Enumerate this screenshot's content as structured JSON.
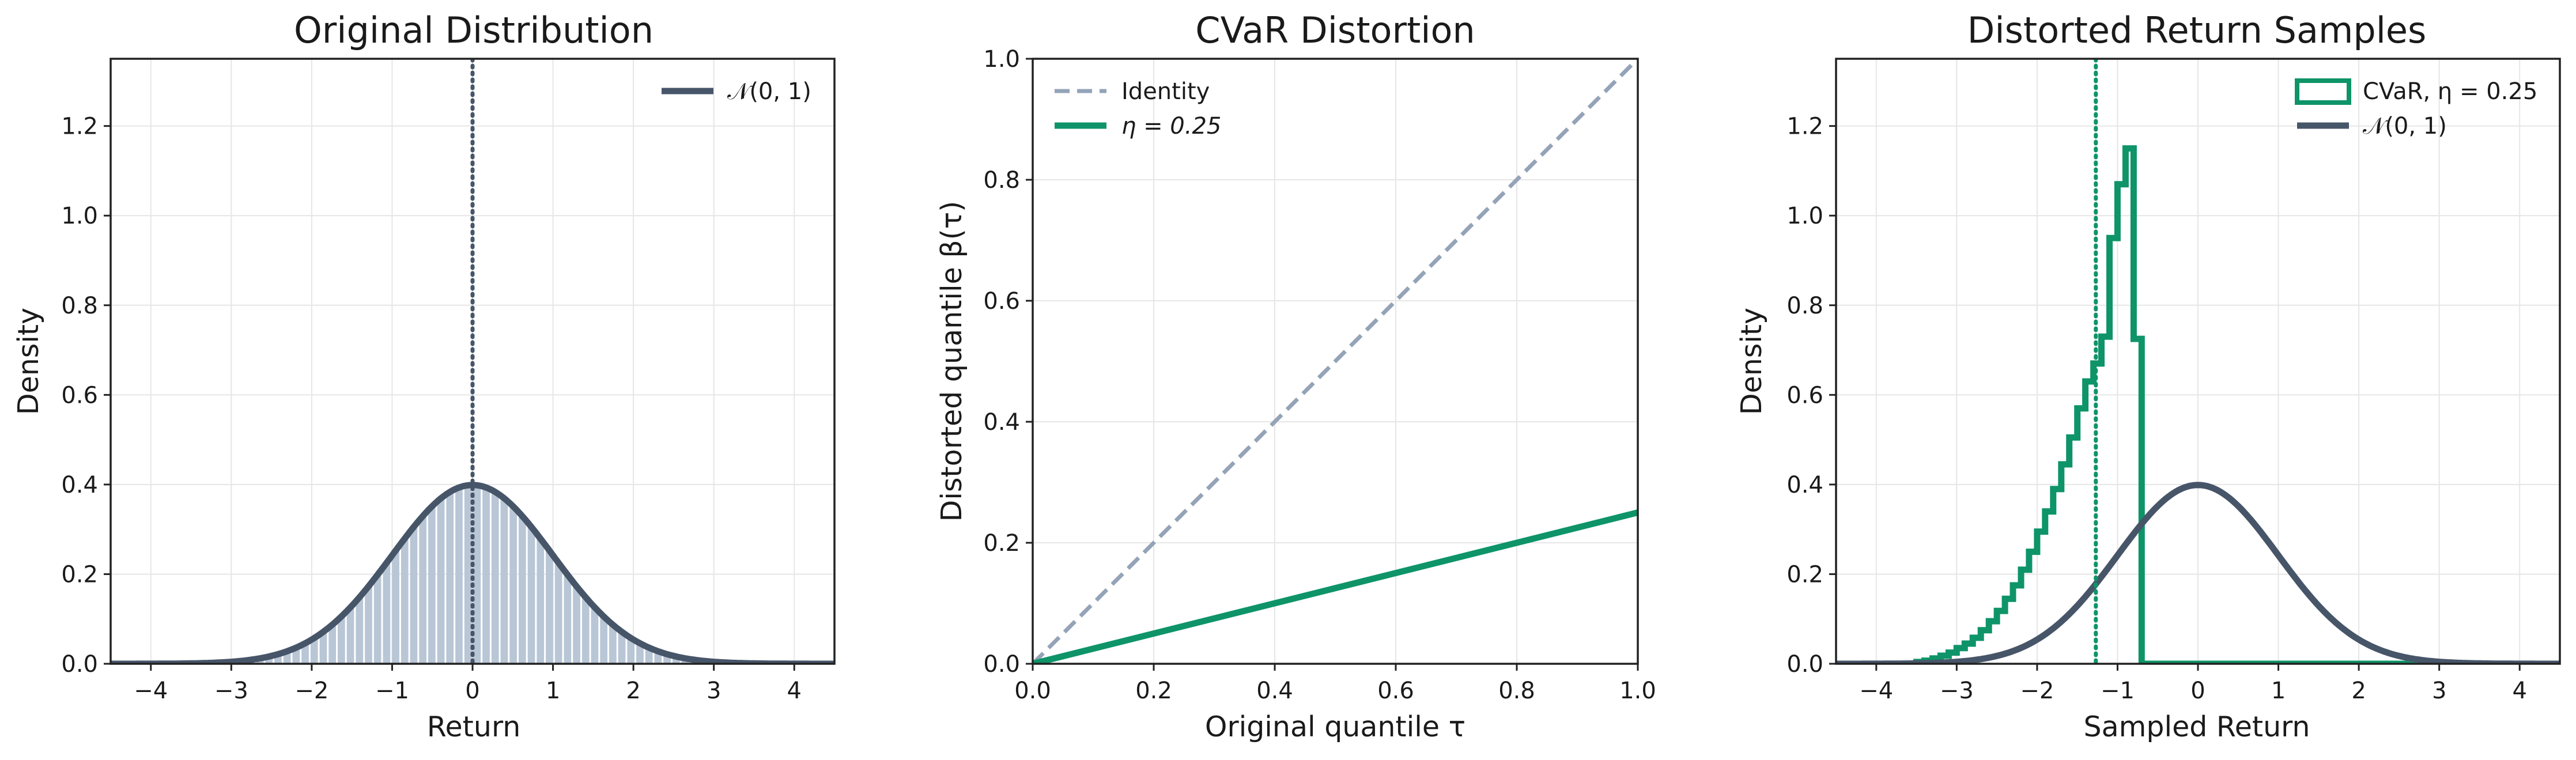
{
  "chart_data": [
    {
      "type": "area",
      "title": "Original Distribution",
      "xlabel": "Return",
      "ylabel": "Density",
      "xlim": [
        -4.5,
        4.5
      ],
      "ylim": [
        0,
        1.35
      ],
      "xticks": [
        "−4",
        "−3",
        "−2",
        "−1",
        "0",
        "1",
        "2",
        "3",
        "4"
      ],
      "yticks": [
        "0.0",
        "0.2",
        "0.4",
        "0.6",
        "0.8",
        "1.0",
        "1.2"
      ],
      "grid": true,
      "legend_position": "top-right",
      "series": [
        {
          "name": "𝒩(0, 1)",
          "kind": "pdf",
          "mean": 0,
          "std": 1,
          "color": "#475569"
        }
      ],
      "fill": {
        "kind": "histogram-under-pdf",
        "from": -4.5,
        "to": 4.5,
        "bins": 80,
        "color": "#b8c6d6"
      },
      "vline": {
        "x": 0,
        "style": "dotted",
        "color": "#475569"
      }
    },
    {
      "type": "line",
      "title": "CVaR Distortion",
      "xlabel": "Original quantile τ",
      "ylabel": "Distorted quantile β(τ)",
      "xlim": [
        0,
        1
      ],
      "ylim": [
        0,
        1
      ],
      "xticks": [
        "0.0",
        "0.2",
        "0.4",
        "0.6",
        "0.8",
        "1.0"
      ],
      "yticks": [
        "0.0",
        "0.2",
        "0.4",
        "0.6",
        "0.8",
        "1.0"
      ],
      "grid": true,
      "legend_position": "top-left",
      "series": [
        {
          "name": "Identity",
          "x": [
            0,
            1
          ],
          "y": [
            0,
            1
          ],
          "style": "dashed",
          "color": "#94a3b8"
        },
        {
          "name": "η = 0.25",
          "x": [
            0,
            1
          ],
          "y": [
            0,
            0.25
          ],
          "style": "solid",
          "color": "#0e9468"
        }
      ]
    },
    {
      "type": "bar",
      "title": "Distorted Return Samples",
      "xlabel": "Sampled Return",
      "ylabel": "Density",
      "xlim": [
        -4.5,
        4.5
      ],
      "ylim": [
        0,
        1.35
      ],
      "xticks": [
        "−4",
        "−3",
        "−2",
        "−1",
        "0",
        "1",
        "2",
        "3",
        "4"
      ],
      "yticks": [
        "0.0",
        "0.2",
        "0.4",
        "0.6",
        "0.8",
        "1.0",
        "1.2"
      ],
      "grid": true,
      "legend_position": "top-right",
      "series": [
        {
          "name": "CVaR, η = 0.25",
          "kind": "step-histogram",
          "color": "#0e9468",
          "bin_edges": [
            -3.5,
            -3.4,
            -3.3,
            -3.2,
            -3.1,
            -3.0,
            -2.9,
            -2.8,
            -2.7,
            -2.6,
            -2.5,
            -2.4,
            -2.3,
            -2.2,
            -2.1,
            -2.0,
            -1.9,
            -1.8,
            -1.7,
            -1.6,
            -1.5,
            -1.4,
            -1.3,
            -1.2,
            -1.1,
            -1.0,
            -0.9,
            -0.8,
            -0.7,
            -0.6,
            -0.5,
            -0.4,
            -0.3,
            -0.2,
            -0.1,
            0.0,
            0.1,
            0.2,
            0.3,
            0.4,
            0.5,
            0.6,
            0.7,
            0.8,
            0.9,
            1.0,
            1.1,
            1.2,
            1.3,
            1.4,
            1.5,
            1.6,
            1.7,
            1.8,
            1.9,
            2.0,
            2.1,
            2.2,
            2.3,
            2.4,
            2.5,
            2.6,
            2.7,
            2.8,
            2.9,
            3.0
          ],
          "values": [
            0.004,
            0.007,
            0.012,
            0.018,
            0.025,
            0.035,
            0.045,
            0.058,
            0.075,
            0.095,
            0.118,
            0.145,
            0.175,
            0.21,
            0.25,
            0.295,
            0.34,
            0.39,
            0.445,
            0.505,
            0.57,
            0.63,
            0.67,
            0.73,
            0.95,
            1.07,
            1.15,
            0.725,
            0,
            0,
            0,
            0,
            0,
            0,
            0,
            0,
            0,
            0,
            0,
            0,
            0,
            0,
            0,
            0,
            0,
            0,
            0,
            0,
            0,
            0,
            0,
            0,
            0,
            0,
            0,
            0,
            0,
            0,
            0,
            0,
            0,
            0,
            0,
            0,
            0
          ]
        },
        {
          "name": "𝒩(0, 1)",
          "kind": "pdf",
          "mean": 0,
          "std": 1,
          "color": "#475569"
        }
      ],
      "vline": {
        "x": -1.27,
        "style": "dotted",
        "color": "#0e9468"
      }
    }
  ]
}
